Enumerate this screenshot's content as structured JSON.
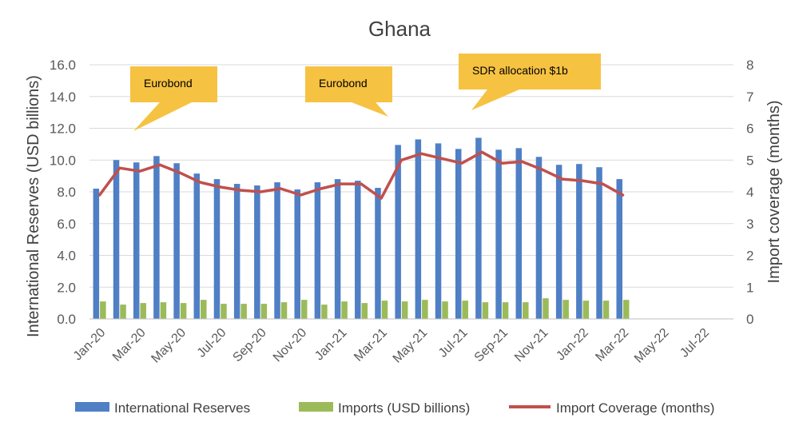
{
  "chart_data": {
    "type": "bar",
    "title": "Ghana",
    "ylabel": "International Reserves (USD billions)",
    "y2label": "Import coverage (months)",
    "ylim": [
      0,
      16
    ],
    "y2lim": [
      0,
      8
    ],
    "yticks": [
      "0.0",
      "2.0",
      "4.0",
      "6.0",
      "8.0",
      "10.0",
      "12.0",
      "14.0",
      "16.0"
    ],
    "y2ticks": [
      "0",
      "1",
      "2",
      "3",
      "4",
      "5",
      "6",
      "7",
      "8"
    ],
    "categories": [
      "Jan-20",
      "Feb-20",
      "Mar-20",
      "Apr-20",
      "May-20",
      "Jun-20",
      "Jul-20",
      "Aug-20",
      "Sep-20",
      "Oct-20",
      "Nov-20",
      "Dec-20",
      "Jan-21",
      "Feb-21",
      "Mar-21",
      "Apr-21",
      "May-21",
      "Jun-21",
      "Jul-21",
      "Aug-21",
      "Sep-21",
      "Oct-21",
      "Nov-21",
      "Dec-21",
      "Jan-22",
      "Feb-22",
      "Mar-22",
      "Apr-22",
      "May-22",
      "Jun-22",
      "Jul-22",
      "Aug-22"
    ],
    "xtick_labels": [
      "Jan-20",
      "Mar-20",
      "May-20",
      "Jul-20",
      "Sep-20",
      "Nov-20",
      "Jan-21",
      "Mar-21",
      "May-21",
      "Jul-21",
      "Sep-21",
      "Nov-21",
      "Jan-22",
      "Mar-22",
      "May-22",
      "Jul-22"
    ],
    "series": [
      {
        "name": "International Reserves",
        "type": "bar",
        "axis": "left",
        "color": "#4f7fc5",
        "values": [
          8.2,
          10.0,
          9.85,
          10.25,
          9.8,
          9.15,
          8.8,
          8.5,
          8.4,
          8.6,
          8.15,
          8.6,
          8.8,
          8.7,
          8.25,
          10.95,
          11.3,
          11.05,
          10.7,
          11.4,
          10.65,
          10.75,
          10.2,
          9.7,
          9.75,
          9.55,
          8.8,
          null,
          null,
          null,
          null,
          null
        ]
      },
      {
        "name": "Imports (USD billions)",
        "type": "bar",
        "axis": "left",
        "color": "#9bbb59",
        "values": [
          1.1,
          0.9,
          1.0,
          1.05,
          1.0,
          1.2,
          0.95,
          0.95,
          0.95,
          1.05,
          1.2,
          0.9,
          1.1,
          1.0,
          1.15,
          1.1,
          1.2,
          1.1,
          1.15,
          1.05,
          1.05,
          1.05,
          1.3,
          1.2,
          1.15,
          1.15,
          1.2,
          null,
          null,
          null,
          null,
          null
        ]
      },
      {
        "name": "Import Coverage (months)",
        "type": "line",
        "axis": "right",
        "color": "#c0504d",
        "values": [
          3.9,
          4.75,
          4.65,
          4.85,
          4.6,
          4.3,
          4.15,
          4.05,
          4.0,
          4.1,
          3.9,
          4.1,
          4.25,
          4.25,
          3.8,
          5.0,
          5.2,
          5.05,
          4.9,
          5.25,
          4.9,
          4.95,
          4.7,
          4.4,
          4.35,
          4.25,
          3.9,
          null,
          null,
          null,
          null,
          null
        ]
      }
    ],
    "annotations": [
      {
        "text": "Eurobond",
        "at": "Feb-20"
      },
      {
        "text": "Eurobond",
        "at": "Mar-21"
      },
      {
        "text": "SDR allocation $1b",
        "at": "Jun-21"
      }
    ],
    "grid": true,
    "legend_position": "bottom",
    "annotation_color": "#f6c242"
  }
}
